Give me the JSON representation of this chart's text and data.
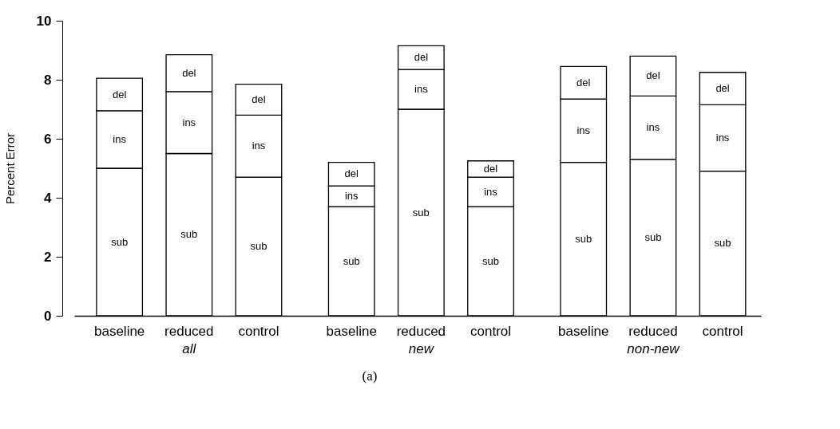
{
  "chart_data": {
    "type": "bar",
    "stacked": true,
    "ylabel": "Percent Error",
    "categories": [
      "baseline",
      "reduced",
      "control",
      "baseline",
      "reduced",
      "control",
      "baseline",
      "reduced",
      "control"
    ],
    "series": [
      {
        "name": "sub",
        "color": "#ffffff",
        "values": [
          5.0,
          5.5,
          4.7,
          3.7,
          7.0,
          3.7,
          5.2,
          5.3,
          4.9
        ]
      },
      {
        "name": "ins",
        "color": "#ffffff",
        "values": [
          1.95,
          2.1,
          2.1,
          0.7,
          1.35,
          1.0,
          2.15,
          2.15,
          2.25
        ]
      },
      {
        "name": "del",
        "color": "#ffffff",
        "values": [
          1.1,
          1.25,
          1.05,
          0.8,
          0.8,
          0.55,
          1.1,
          1.35,
          1.1
        ]
      }
    ],
    "ylim": [
      0,
      10
    ],
    "yticks": [
      0,
      2,
      4,
      6,
      8,
      10
    ],
    "grid": false,
    "annotations": [
      "all",
      "new",
      "non-new",
      "(a)"
    ]
  }
}
